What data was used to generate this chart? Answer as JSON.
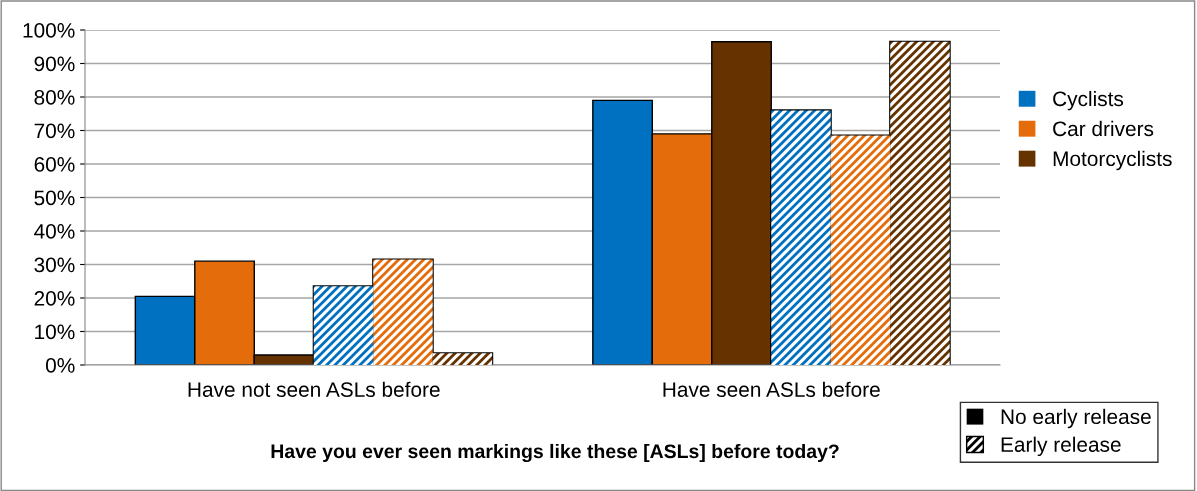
{
  "chart_data": {
    "type": "bar",
    "xlabel": "Have you ever seen markings like these [ASLs] before today?",
    "categories": [
      "Have not seen ASLs before",
      "Have seen ASLs before"
    ],
    "series": [
      {
        "name": "Cyclists",
        "color": "#0070c0",
        "values": [
          20.5,
          79
        ]
      },
      {
        "name": "Car drivers",
        "color": "#e46c0a",
        "values": [
          31,
          69
        ]
      },
      {
        "name": "Motorcyclists",
        "color": "#663300",
        "values": [
          3,
          96.5
        ]
      },
      {
        "color": "#0070c0",
        "values": [
          23.5,
          76
        ]
      },
      {
        "color": "#e46c0a",
        "values": [
          31.5,
          68.5
        ]
      },
      {
        "color": "#663300",
        "values": [
          3.5,
          96.5
        ]
      }
    ],
    "annotations": [
      "No early release",
      "Early release"
    ],
    "ylim": [
      0,
      100
    ],
    "yticks": [
      {
        "value": 0,
        "label": "0%"
      },
      {
        "value": 10,
        "label": "10%"
      },
      {
        "value": 20,
        "label": "20%"
      },
      {
        "value": 30,
        "label": "30%"
      },
      {
        "value": 40,
        "label": "40%"
      },
      {
        "value": 50,
        "label": "50%"
      },
      {
        "value": 60,
        "label": "60%"
      },
      {
        "value": 70,
        "label": "70%"
      },
      {
        "value": 80,
        "label": "80%"
      },
      {
        "value": 90,
        "label": "90%"
      },
      {
        "value": 100,
        "label": "100%"
      }
    ],
    "grid": "y",
    "legend": "right"
  }
}
